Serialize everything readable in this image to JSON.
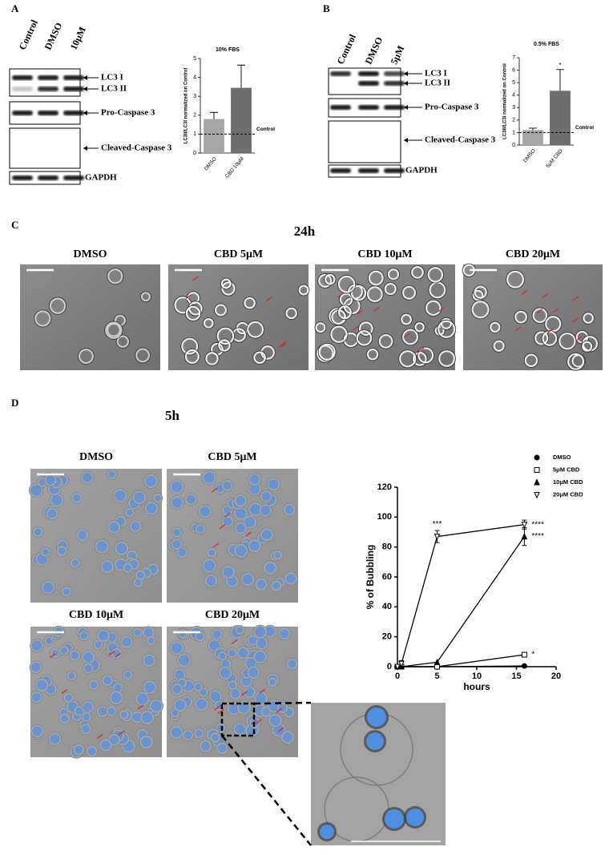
{
  "blots": [
    {
      "panel": "A",
      "lanes": [
        "Control",
        "DMSO",
        "10μM"
      ],
      "bands": [
        "LC3 I",
        "LC3 II",
        "Pro-Caspase 3",
        "Cleaved-Caspase 3",
        "GAPDH"
      ]
    },
    {
      "panel": "B",
      "lanes": [
        "Control",
        "DMSO",
        "5μM"
      ],
      "bands": [
        "LC3 I",
        "LC3 II",
        "Pro-Caspase 3",
        "Cleaved-Caspase 3",
        "GAPDH"
      ]
    }
  ],
  "microscopy": [
    {
      "panel": "C",
      "time": "24h",
      "conditions": [
        "DMSO",
        "CBD 5μM",
        "CBD 10μM",
        "CBD 20μM"
      ]
    },
    {
      "panel": "D",
      "time": "5h",
      "conditions": [
        "DMSO",
        "CBD 5μM",
        "CBD 10μM",
        "CBD 20μM"
      ]
    }
  ],
  "chart_data": [
    {
      "type": "bar",
      "title": "10% FBS",
      "y_label": "LC3II/LC3I normalized on Control",
      "categories": [
        "DMSO",
        "CBD 10μM"
      ],
      "values": [
        1.8,
        3.45
      ],
      "errors": [
        0.35,
        1.2
      ],
      "colors": [
        "#a6a6a6",
        "#6e6e6e"
      ],
      "ylim": [
        0,
        5
      ],
      "yticks": [
        0,
        1,
        2,
        3,
        4,
        5
      ],
      "reference_line": {
        "value": 1,
        "label": "Control"
      }
    },
    {
      "type": "bar",
      "title": "0.5% FBS",
      "y_label": "LC3II/LC3I normalized on Control",
      "categories": [
        "DMSO",
        "5μM CBD"
      ],
      "values": [
        1.2,
        4.35
      ],
      "errors": [
        0.15,
        1.7
      ],
      "colors": [
        "#a6a6a6",
        "#6e6e6e"
      ],
      "ylim": [
        0,
        7
      ],
      "yticks": [
        0,
        1,
        2,
        3,
        4,
        5,
        6,
        7
      ],
      "significance": [
        null,
        "*"
      ],
      "reference_line": {
        "value": 1,
        "label": "Control"
      }
    },
    {
      "type": "line",
      "x_label": "hours",
      "y_label": "% of Bubbling",
      "x": [
        0,
        0.5,
        5,
        16
      ],
      "xlim": [
        0,
        20
      ],
      "xticks": [
        0,
        5,
        10,
        15,
        20
      ],
      "ylim": [
        0,
        120
      ],
      "yticks": [
        0,
        20,
        40,
        60,
        80,
        100,
        120
      ],
      "legend": "top-right",
      "series": [
        {
          "name": "DMSO",
          "color": "#000000",
          "marker": "circle",
          "filled": true,
          "values": [
            0,
            0,
            0,
            0.5
          ],
          "errors": [
            null,
            null,
            null,
            null
          ],
          "significance": [
            null,
            null,
            null,
            null
          ]
        },
        {
          "name": "5μM CBD",
          "color": "#000000",
          "marker": "square",
          "filled": false,
          "values": [
            0,
            0,
            0,
            8
          ],
          "errors": [
            null,
            null,
            null,
            null
          ],
          "significance": [
            null,
            null,
            null,
            "*"
          ]
        },
        {
          "name": "10μM CBD",
          "color": "#000000",
          "marker": "triangle",
          "filled": true,
          "values": [
            0,
            0,
            3,
            87
          ],
          "errors": [
            null,
            null,
            null,
            6
          ],
          "significance": [
            null,
            null,
            null,
            "****"
          ]
        },
        {
          "name": "20μM CBD",
          "color": "#000000",
          "marker": "triangle-down",
          "filled": false,
          "values": [
            0,
            2,
            87,
            95
          ],
          "errors": [
            null,
            2,
            4,
            3
          ],
          "significance": [
            null,
            null,
            "***",
            "****"
          ]
        }
      ]
    }
  ]
}
